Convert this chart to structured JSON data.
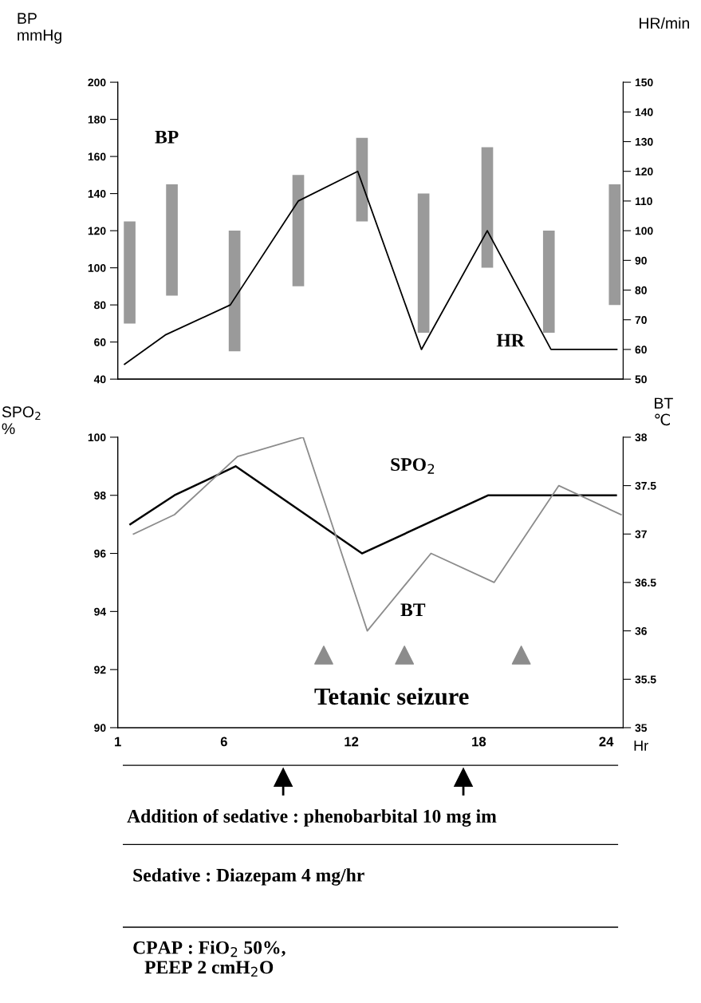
{
  "chart_data": [
    {
      "type": "bar",
      "ylabel": "BP\nmmHg",
      "y2label": "HR/min",
      "tick_labels": "y",
      "legend": false,
      "grid": false,
      "x": [
        1.56,
        3.55,
        6.5,
        9.5,
        12.5,
        15.4,
        18.4,
        21.3,
        24.4
      ],
      "series": [
        {
          "type": "bar",
          "color": "#9a9a9a",
          "base": [
            70,
            85,
            55,
            90,
            125,
            65,
            100,
            65,
            80
          ],
          "values": [
            55,
            60,
            65,
            60,
            45,
            75,
            65,
            55,
            65
          ]
        },
        {
          "type": "line",
          "axis": "y2",
          "color": "#000000",
          "x": [
            1.32,
            3.27,
            6.3,
            9.5,
            12.3,
            15.3,
            18.4,
            21.4,
            24.5
          ],
          "values": [
            55,
            65,
            75,
            110,
            120,
            60,
            100,
            60,
            60
          ]
        }
      ],
      "xlim": [
        1,
        24.8
      ],
      "ylim": [
        40,
        200
      ],
      "yticks": [
        40,
        60,
        80,
        100,
        120,
        140,
        160,
        180,
        200
      ],
      "y2lim": [
        50,
        150
      ],
      "y2ticks": [
        50,
        60,
        70,
        80,
        90,
        100,
        110,
        120,
        130,
        140,
        150
      ],
      "annotations": [
        "BP",
        "HR"
      ]
    },
    {
      "type": "line",
      "xlabel": "Hr",
      "ylabel": "SPO$_{2}$\n%",
      "y2label": "BT\n℃",
      "legend": false,
      "grid": false,
      "marker": "none",
      "line_style": "solid",
      "series": [
        {
          "color": "#000000",
          "x": [
            1.59,
            3.67,
            6.55,
            12.5,
            18.45,
            24.46
          ],
          "values": [
            97,
            98,
            99,
            96,
            98,
            98
          ]
        },
        {
          "color": "#8c8c8c",
          "axis": "y2",
          "x": [
            1.74,
            3.67,
            6.64,
            9.73,
            12.75,
            15.75,
            18.72,
            21.77,
            24.7
          ],
          "values": [
            37,
            37.2,
            37.8,
            38,
            36,
            36.8,
            36.5,
            37.5,
            37.2
          ]
        },
        {
          "type": "scatter",
          "marker": "triangle",
          "color": "#8c8c8c",
          "x": [
            10.7,
            14.5,
            20.0
          ],
          "values": [
            92.5,
            92.5,
            92.5
          ]
        }
      ],
      "xlim": [
        1,
        24.8
      ],
      "xticks": [
        1,
        6,
        12,
        18,
        24
      ],
      "ylim": [
        90,
        100
      ],
      "yticks": [
        90,
        92,
        94,
        96,
        98,
        100
      ],
      "y2lim": [
        35,
        38
      ],
      "y2ticks": [
        35,
        35.5,
        36,
        36.5,
        37,
        37.5,
        38
      ],
      "annotations": [
        "SPO$_{2}$",
        "BT",
        "Tetanic seizure",
        "Addition of sedative : phenobarbital 10 mg im",
        "Sedative : Diazepam 4 mg/hr",
        "CPAP : FiO$_{2}$ 50%,\nPEEP 2 cmH$_{2}$O"
      ]
    }
  ]
}
